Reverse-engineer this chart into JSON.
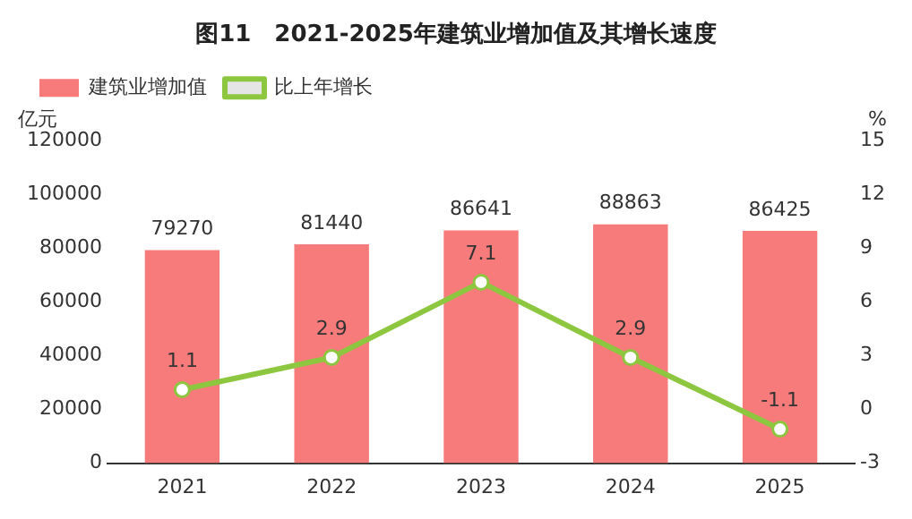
{
  "chart_data": {
    "type": "bar",
    "title": "图11　2021-2025年建筑业增加值及其增长速度",
    "ylabel": "亿元",
    "y2label": "%",
    "categories": [
      "2021",
      "2022",
      "2023",
      "2024",
      "2025"
    ],
    "series": [
      {
        "name": "建筑业增加值",
        "color": "#f77b7b",
        "values": [
          79270,
          81440,
          86641,
          88863,
          86425
        ]
      },
      {
        "name": "比上年增长",
        "type": "line",
        "axis": "y2",
        "color": "#8dc63f",
        "values": [
          1.1,
          2.9,
          7.1,
          2.9,
          -1.1
        ]
      }
    ],
    "ylim": [
      0,
      120000
    ],
    "yticks": [
      0,
      20000,
      40000,
      60000,
      80000,
      100000,
      120000
    ],
    "y2lim": [
      -3,
      15
    ],
    "y2ticks": [
      -3,
      0,
      3,
      6,
      9,
      12,
      15
    ],
    "data_labels": true,
    "legend": "top left",
    "grid": false,
    "marker": "circle",
    "line_style": "solid"
  }
}
